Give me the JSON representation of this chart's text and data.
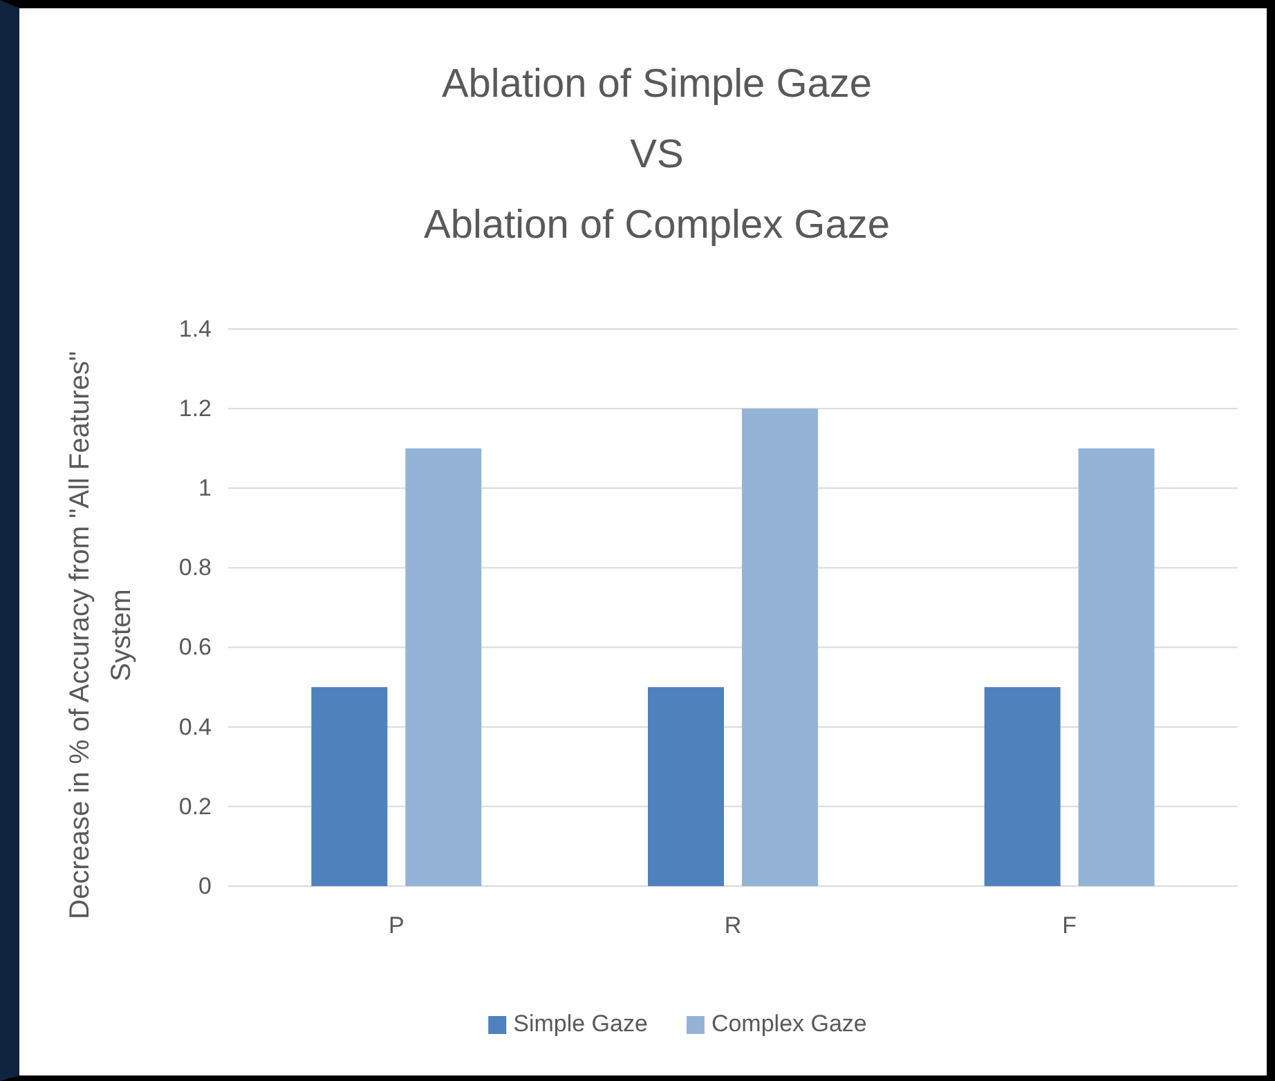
{
  "chart_data": {
    "type": "bar",
    "title": "Ablation of Simple Gaze\nVS\nAblation of Complex Gaze",
    "ylabel": "Decrease in % of Accuracy from \"All Features\"\nSystem",
    "categories": [
      "P",
      "R",
      "F"
    ],
    "series": [
      {
        "name": "Simple Gaze",
        "color": "#4f81bd",
        "values": [
          0.5,
          0.5,
          0.5
        ]
      },
      {
        "name": "Complex Gaze",
        "color": "#95b3d7",
        "values": [
          1.1,
          1.2,
          1.1
        ]
      }
    ],
    "ylim": [
      0,
      1.4
    ],
    "yticks": [
      0,
      {
        "value": 0.2,
        "label": "0.2"
      },
      {
        "value": 0.4,
        "label": "0.4"
      },
      {
        "value": 0.6,
        "label": "0.6"
      },
      {
        "value": 0.8,
        "label": "0.8"
      },
      1,
      {
        "value": 1.2,
        "label": "1.2"
      },
      {
        "value": 1.4,
        "label": "1.4"
      }
    ],
    "grid": "y",
    "legend": "bottom"
  }
}
